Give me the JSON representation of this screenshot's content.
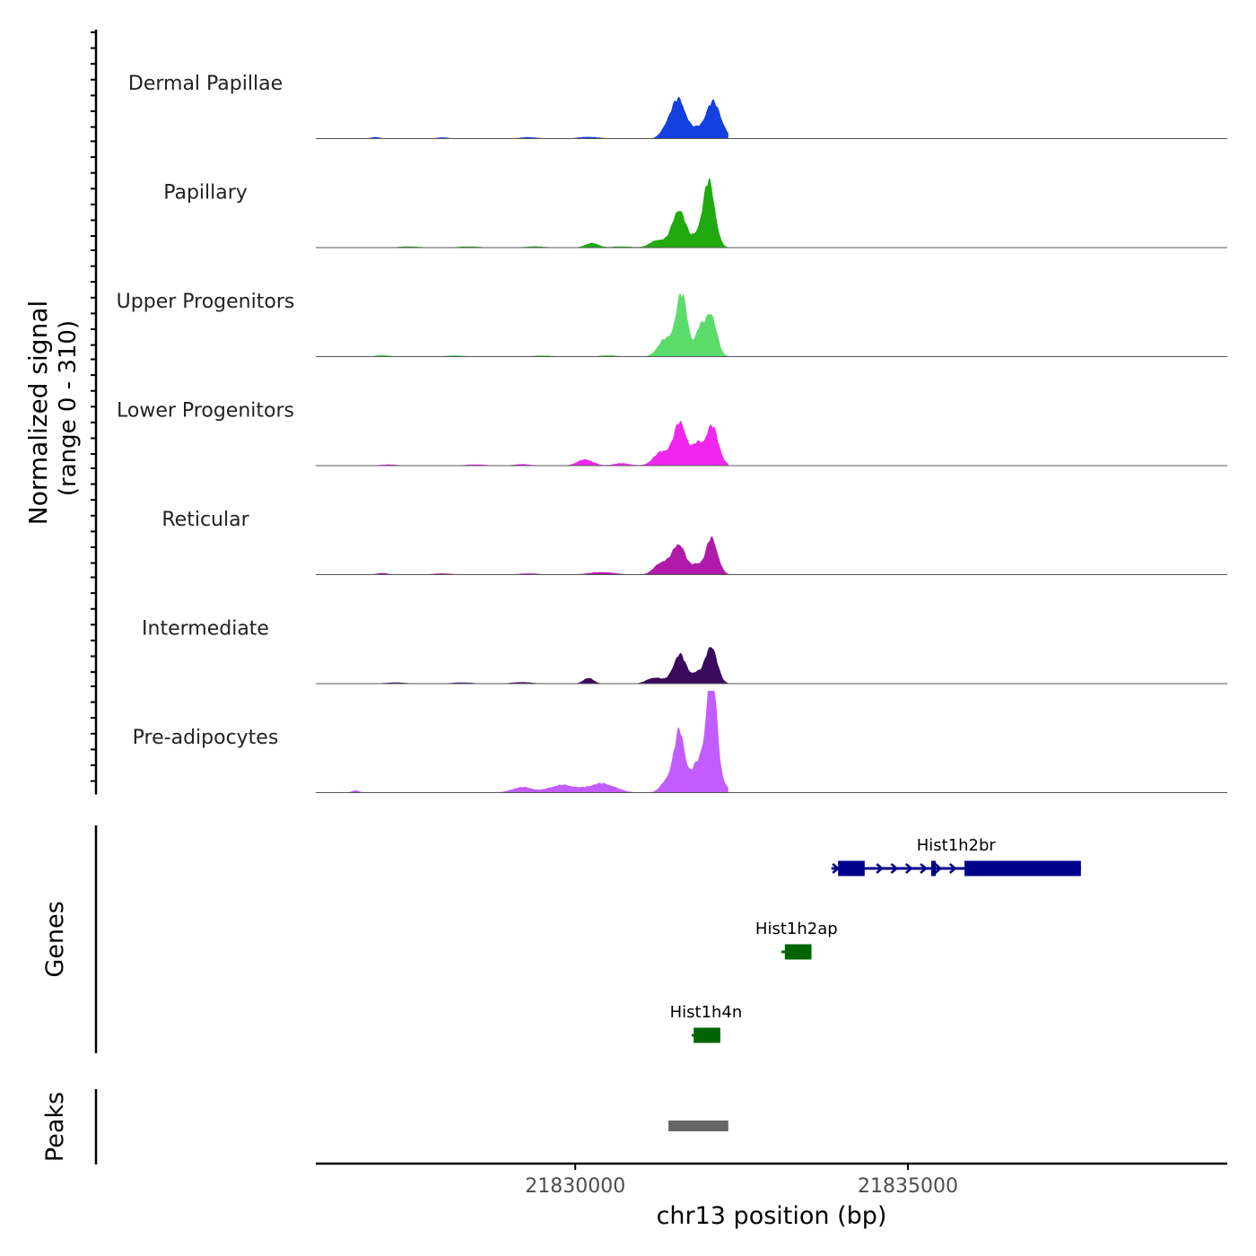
{
  "chart_data": {
    "type": "area",
    "title": "",
    "ylabel_line1": "Normalized signal",
    "ylabel_line2": "(range 0 - 310)",
    "y_range": [
      0,
      310
    ],
    "xlabel": "chr13 position (bp)",
    "x_range": [
      21826100,
      21839800
    ],
    "x_ticks": [
      {
        "value": 21830000,
        "label": "21830000"
      },
      {
        "value": 21835000,
        "label": "21835000"
      }
    ],
    "data_extent": [
      21826100,
      21832300
    ],
    "series": [
      {
        "name": "Dermal Papillae",
        "color": "#1540e0",
        "bumps": [
          [
            21827000,
            5,
            70
          ],
          [
            21828000,
            4,
            90
          ],
          [
            21829300,
            5,
            120
          ],
          [
            21830200,
            6,
            150
          ],
          [
            21831400,
            45,
            95
          ],
          [
            21831570,
            120,
            100
          ],
          [
            21832070,
            120,
            120
          ],
          [
            21831800,
            22,
            80
          ]
        ]
      },
      {
        "name": "Papillary",
        "color": "#20aa10",
        "bumps": [
          [
            21827500,
            4,
            150
          ],
          [
            21828400,
            4,
            150
          ],
          [
            21829400,
            4,
            150
          ],
          [
            21830250,
            15,
            100
          ],
          [
            21830700,
            4,
            150
          ],
          [
            21831250,
            25,
            120
          ],
          [
            21831560,
            125,
            100
          ],
          [
            21832010,
            215,
            90
          ],
          [
            21831820,
            30,
            80
          ]
        ]
      },
      {
        "name": "Upper Progenitors",
        "color": "#5adb6a",
        "bumps": [
          [
            21827100,
            6,
            100
          ],
          [
            21828200,
            4,
            150
          ],
          [
            21829500,
            4,
            150
          ],
          [
            21830500,
            5,
            130
          ],
          [
            21831350,
            55,
            110
          ],
          [
            21831600,
            200,
            90
          ],
          [
            21831860,
            70,
            60
          ],
          [
            21832030,
            145,
            90
          ]
        ]
      },
      {
        "name": "Lower Progenitors",
        "color": "#f026ee",
        "bumps": [
          [
            21827200,
            4,
            120
          ],
          [
            21828500,
            4,
            150
          ],
          [
            21829200,
            5,
            120
          ],
          [
            21830150,
            20,
            120
          ],
          [
            21830700,
            8,
            120
          ],
          [
            21831300,
            45,
            120
          ],
          [
            21831580,
            140,
            100
          ],
          [
            21832050,
            130,
            100
          ],
          [
            21831830,
            60,
            70
          ]
        ]
      },
      {
        "name": "Reticular",
        "color": "#b01aaa",
        "bumps": [
          [
            21827100,
            5,
            90
          ],
          [
            21828000,
            4,
            150
          ],
          [
            21829300,
            4,
            150
          ],
          [
            21830400,
            8,
            200
          ],
          [
            21831300,
            40,
            110
          ],
          [
            21831560,
            100,
            100
          ],
          [
            21832050,
            120,
            90
          ],
          [
            21831820,
            30,
            70
          ]
        ]
      },
      {
        "name": "Intermediate",
        "color": "#3a0a5e",
        "bumps": [
          [
            21827300,
            4,
            150
          ],
          [
            21828300,
            4,
            150
          ],
          [
            21829200,
            5,
            150
          ],
          [
            21830200,
            18,
            80
          ],
          [
            21831200,
            20,
            120
          ],
          [
            21831570,
            95,
            100
          ],
          [
            21832040,
            125,
            90
          ],
          [
            21831820,
            30,
            70
          ]
        ]
      },
      {
        "name": "Pre-adipocytes",
        "color": "#c25cff",
        "bumps": [
          [
            21826700,
            7,
            60
          ],
          [
            21829200,
            18,
            150
          ],
          [
            21829800,
            25,
            200
          ],
          [
            21830400,
            30,
            200
          ],
          [
            21831400,
            45,
            100
          ],
          [
            21831570,
            190,
            80
          ],
          [
            21832050,
            305,
            70
          ],
          [
            21832000,
            120,
            150
          ],
          [
            21831800,
            40,
            80
          ]
        ]
      }
    ],
    "genes": [
      {
        "name": "Hist1h2br",
        "start": 21833850,
        "end": 21837600,
        "color": "#00008b",
        "strand": "+",
        "exons": [
          [
            21833950,
            21834350
          ],
          [
            21835350,
            21835420
          ],
          [
            21835850,
            21837600
          ]
        ]
      },
      {
        "name": "Hist1h2ap",
        "start": 21833100,
        "end": 21833550,
        "color": "#006400",
        "strand": "-",
        "exons": [
          [
            21833150,
            21833550
          ]
        ]
      },
      {
        "name": "Hist1h4n",
        "start": 21831750,
        "end": 21832180,
        "color": "#006400",
        "strand": "-",
        "exons": [
          [
            21831780,
            21832180
          ]
        ]
      }
    ],
    "peaks": [
      {
        "start": 21831400,
        "end": 21832300,
        "color": "#666666"
      }
    ],
    "panel_labels": {
      "genes": "Genes",
      "peaks": "Peaks"
    }
  }
}
